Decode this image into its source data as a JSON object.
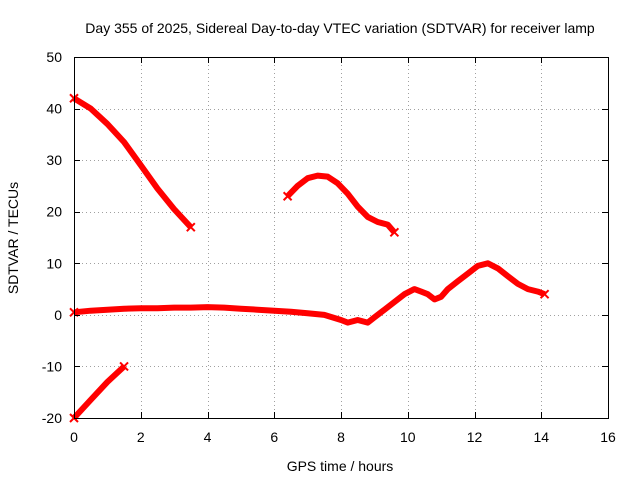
{
  "chart_data": {
    "type": "line",
    "title": "Day 355 of 2025, Sidereal Day-to-day VTEC variation (SDTVAR) for receiver lamp",
    "xlabel": "GPS time / hours",
    "ylabel": "SDTVAR / TECUs",
    "xlim": [
      0,
      16
    ],
    "ylim": [
      -20,
      50
    ],
    "xticks": [
      0,
      2,
      4,
      6,
      8,
      10,
      12,
      14,
      16
    ],
    "yticks": [
      -20,
      -10,
      0,
      10,
      20,
      30,
      40,
      50
    ],
    "xtick_labels": [
      "0",
      "2",
      "4",
      "6",
      "8",
      "10",
      "12",
      "14",
      "16"
    ],
    "ytick_labels": [
      "-20",
      "-10",
      "0",
      "10",
      "20",
      "30",
      "40",
      "50"
    ],
    "grid": true,
    "color": "#ff0000",
    "series": [
      {
        "name": "segment-1",
        "x": [
          0.0,
          0.5,
          1.0,
          1.5,
          2.0,
          2.5,
          3.0,
          3.5
        ],
        "y": [
          42,
          40,
          37,
          33.5,
          29,
          24.5,
          20.5,
          17
        ]
      },
      {
        "name": "segment-2",
        "x": [
          6.4,
          6.7,
          7.0,
          7.3,
          7.6,
          7.9,
          8.2,
          8.5,
          8.8,
          9.1,
          9.4,
          9.6
        ],
        "y": [
          23,
          25,
          26.5,
          27,
          26.8,
          25.5,
          23.5,
          21,
          19,
          18,
          17.5,
          16
        ]
      },
      {
        "name": "segment-3",
        "x": [
          0.0,
          0.5,
          1.0,
          1.5,
          2.0,
          2.5,
          3.0,
          3.5,
          4.0,
          4.5,
          5.0,
          5.5,
          6.0,
          6.5,
          7.0,
          7.5,
          8.0,
          8.2,
          8.5,
          8.8,
          9.0,
          9.3,
          9.6,
          9.9,
          10.2,
          10.4,
          10.6,
          10.8,
          11.0,
          11.2,
          11.5,
          11.8,
          12.1,
          12.4,
          12.7,
          13.0,
          13.3,
          13.6,
          13.9,
          14.1
        ],
        "y": [
          0.5,
          0.8,
          1.0,
          1.2,
          1.3,
          1.3,
          1.4,
          1.4,
          1.5,
          1.4,
          1.2,
          1.0,
          0.8,
          0.6,
          0.3,
          0.0,
          -1.0,
          -1.5,
          -1.0,
          -1.5,
          -0.5,
          1.0,
          2.5,
          4.0,
          5.0,
          4.5,
          4.0,
          3.0,
          3.5,
          5.0,
          6.5,
          8.0,
          9.5,
          10.0,
          9.0,
          7.5,
          6.0,
          5.0,
          4.5,
          4.0
        ]
      },
      {
        "name": "segment-4",
        "x": [
          0.0,
          0.5,
          1.0,
          1.5
        ],
        "y": [
          -20,
          -16.5,
          -13,
          -10
        ]
      }
    ]
  }
}
